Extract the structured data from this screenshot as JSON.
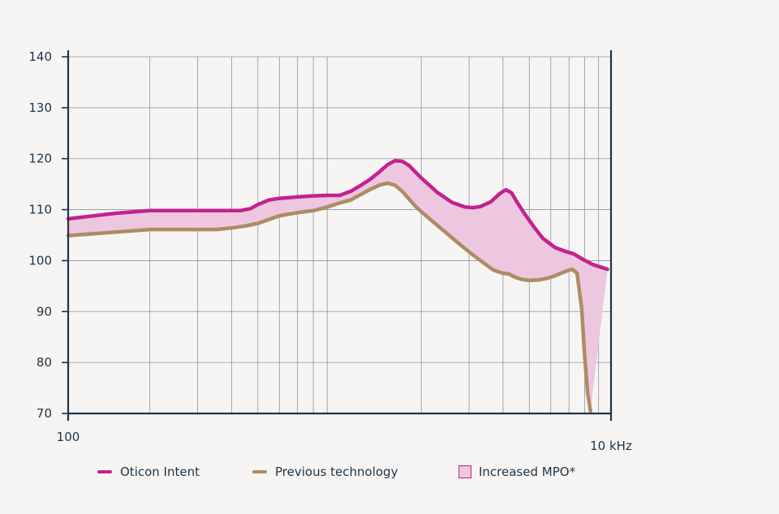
{
  "chart_data": {
    "type": "line",
    "x_scale": "log",
    "x_tick_labels": [
      {
        "value": 100,
        "label": "100"
      },
      {
        "value": 10000,
        "label": "10 kHz"
      }
    ],
    "xlim": [
      100,
      10000
    ],
    "y_ticks": [
      70,
      80,
      90,
      100,
      110,
      120,
      130,
      140
    ],
    "ylim": [
      70,
      140
    ],
    "grid": true,
    "legend_position": "bottom",
    "series": [
      {
        "name": "Oticon Intent",
        "color": "#c2228f",
        "points": [
          [
            100,
            108.2
          ],
          [
            150,
            109.3
          ],
          [
            200,
            109.8
          ],
          [
            300,
            109.8
          ],
          [
            400,
            109.8
          ],
          [
            430,
            109.8
          ],
          [
            470,
            110.2
          ],
          [
            500,
            111.0
          ],
          [
            550,
            111.9
          ],
          [
            600,
            112.2
          ],
          [
            700,
            112.5
          ],
          [
            800,
            112.7
          ],
          [
            900,
            112.8
          ],
          [
            1000,
            112.8
          ],
          [
            1100,
            113.6
          ],
          [
            1200,
            114.8
          ],
          [
            1300,
            116.0
          ],
          [
            1400,
            117.4
          ],
          [
            1500,
            118.8
          ],
          [
            1600,
            119.6
          ],
          [
            1700,
            119.5
          ],
          [
            1800,
            118.7
          ],
          [
            2000,
            116.2
          ],
          [
            2300,
            113.3
          ],
          [
            2600,
            111.4
          ],
          [
            2900,
            110.5
          ],
          [
            3100,
            110.4
          ],
          [
            3300,
            110.6
          ],
          [
            3600,
            111.5
          ],
          [
            3900,
            113.2
          ],
          [
            4100,
            113.9
          ],
          [
            4300,
            113.3
          ],
          [
            4500,
            111.5
          ],
          [
            4800,
            109.2
          ],
          [
            5200,
            106.6
          ],
          [
            5600,
            104.4
          ],
          [
            6200,
            102.6
          ],
          [
            6800,
            101.8
          ],
          [
            7300,
            101.3
          ],
          [
            7900,
            100.2
          ],
          [
            8600,
            99.2
          ],
          [
            9300,
            98.6
          ],
          [
            9700,
            98.3
          ]
        ]
      },
      {
        "name": "Previous technology",
        "color": "#ad8c64",
        "points": [
          [
            100,
            104.9
          ],
          [
            150,
            105.6
          ],
          [
            200,
            106.1
          ],
          [
            300,
            106.1
          ],
          [
            350,
            106.1
          ],
          [
            400,
            106.4
          ],
          [
            450,
            106.8
          ],
          [
            500,
            107.3
          ],
          [
            600,
            108.8
          ],
          [
            700,
            109.4
          ],
          [
            800,
            109.8
          ],
          [
            900,
            110.5
          ],
          [
            1000,
            111.3
          ],
          [
            1100,
            111.9
          ],
          [
            1200,
            113.0
          ],
          [
            1300,
            114.0
          ],
          [
            1400,
            114.8
          ],
          [
            1500,
            115.2
          ],
          [
            1600,
            114.8
          ],
          [
            1700,
            113.6
          ],
          [
            1800,
            112.1
          ],
          [
            1900,
            110.7
          ],
          [
            2000,
            109.6
          ],
          [
            2200,
            107.7
          ],
          [
            2500,
            105.2
          ],
          [
            2800,
            103.0
          ],
          [
            3100,
            101.1
          ],
          [
            3400,
            99.5
          ],
          [
            3700,
            98.1
          ],
          [
            4000,
            97.5
          ],
          [
            4200,
            97.4
          ],
          [
            4400,
            96.8
          ],
          [
            4700,
            96.3
          ],
          [
            5000,
            96.1
          ],
          [
            5400,
            96.2
          ],
          [
            5800,
            96.5
          ],
          [
            6200,
            97.0
          ],
          [
            6600,
            97.6
          ],
          [
            6900,
            98.0
          ],
          [
            7200,
            98.3
          ],
          [
            7500,
            97.5
          ],
          [
            7800,
            90.5
          ],
          [
            8000,
            81.0
          ],
          [
            8200,
            74.0
          ],
          [
            8400,
            70.5
          ]
        ]
      }
    ],
    "shaded_region": {
      "name": "Increased MPO*",
      "fill": "#edc6df",
      "stroke": "#c2228f"
    }
  }
}
